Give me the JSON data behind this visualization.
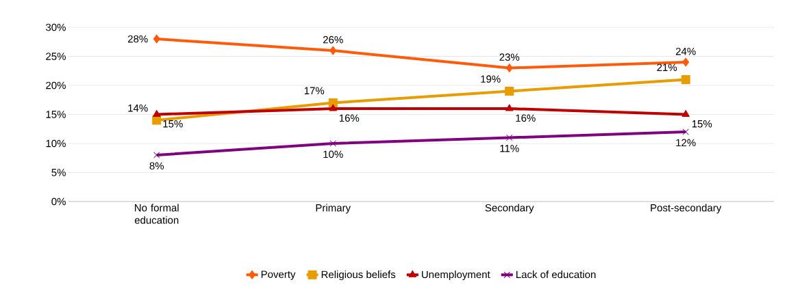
{
  "chart_data": {
    "type": "line",
    "categories": [
      "No formal education",
      "Primary",
      "Secondary",
      "Post-secondary"
    ],
    "series": [
      {
        "name": "Poverty",
        "color": "#ff5a0a",
        "marker": "diamond",
        "values": [
          28,
          26,
          23,
          24
        ],
        "value_labels": [
          "28%",
          "26%",
          "23%",
          "24%"
        ]
      },
      {
        "name": "Religious beliefs",
        "color": "#e89c00",
        "marker": "square",
        "values": [
          14,
          17,
          19,
          21
        ],
        "value_labels": [
          "14%",
          "17%",
          "19%",
          "21%"
        ]
      },
      {
        "name": "Unemployment",
        "color": "#c00000",
        "marker": "triangle",
        "values": [
          15,
          16,
          16,
          15
        ],
        "value_labels": [
          "15%",
          "16%",
          "16%",
          "15%"
        ]
      },
      {
        "name": "Lack of education",
        "color": "#800080",
        "marker": "cross",
        "values": [
          8,
          10,
          11,
          12
        ],
        "value_labels": [
          "8%",
          "10%",
          "11%",
          "12%"
        ]
      }
    ],
    "ylim": [
      0,
      30
    ],
    "yticks": [
      {
        "value": 0,
        "label": "0%"
      },
      {
        "value": 5,
        "label": "5%"
      },
      {
        "value": 10,
        "label": "10%"
      },
      {
        "value": 15,
        "label": "15%"
      },
      {
        "value": 20,
        "label": "20%"
      },
      {
        "value": 25,
        "label": "25%"
      },
      {
        "value": 30,
        "label": "30%"
      }
    ],
    "grid": "y",
    "legend": "bottom",
    "line_style": "solid"
  }
}
